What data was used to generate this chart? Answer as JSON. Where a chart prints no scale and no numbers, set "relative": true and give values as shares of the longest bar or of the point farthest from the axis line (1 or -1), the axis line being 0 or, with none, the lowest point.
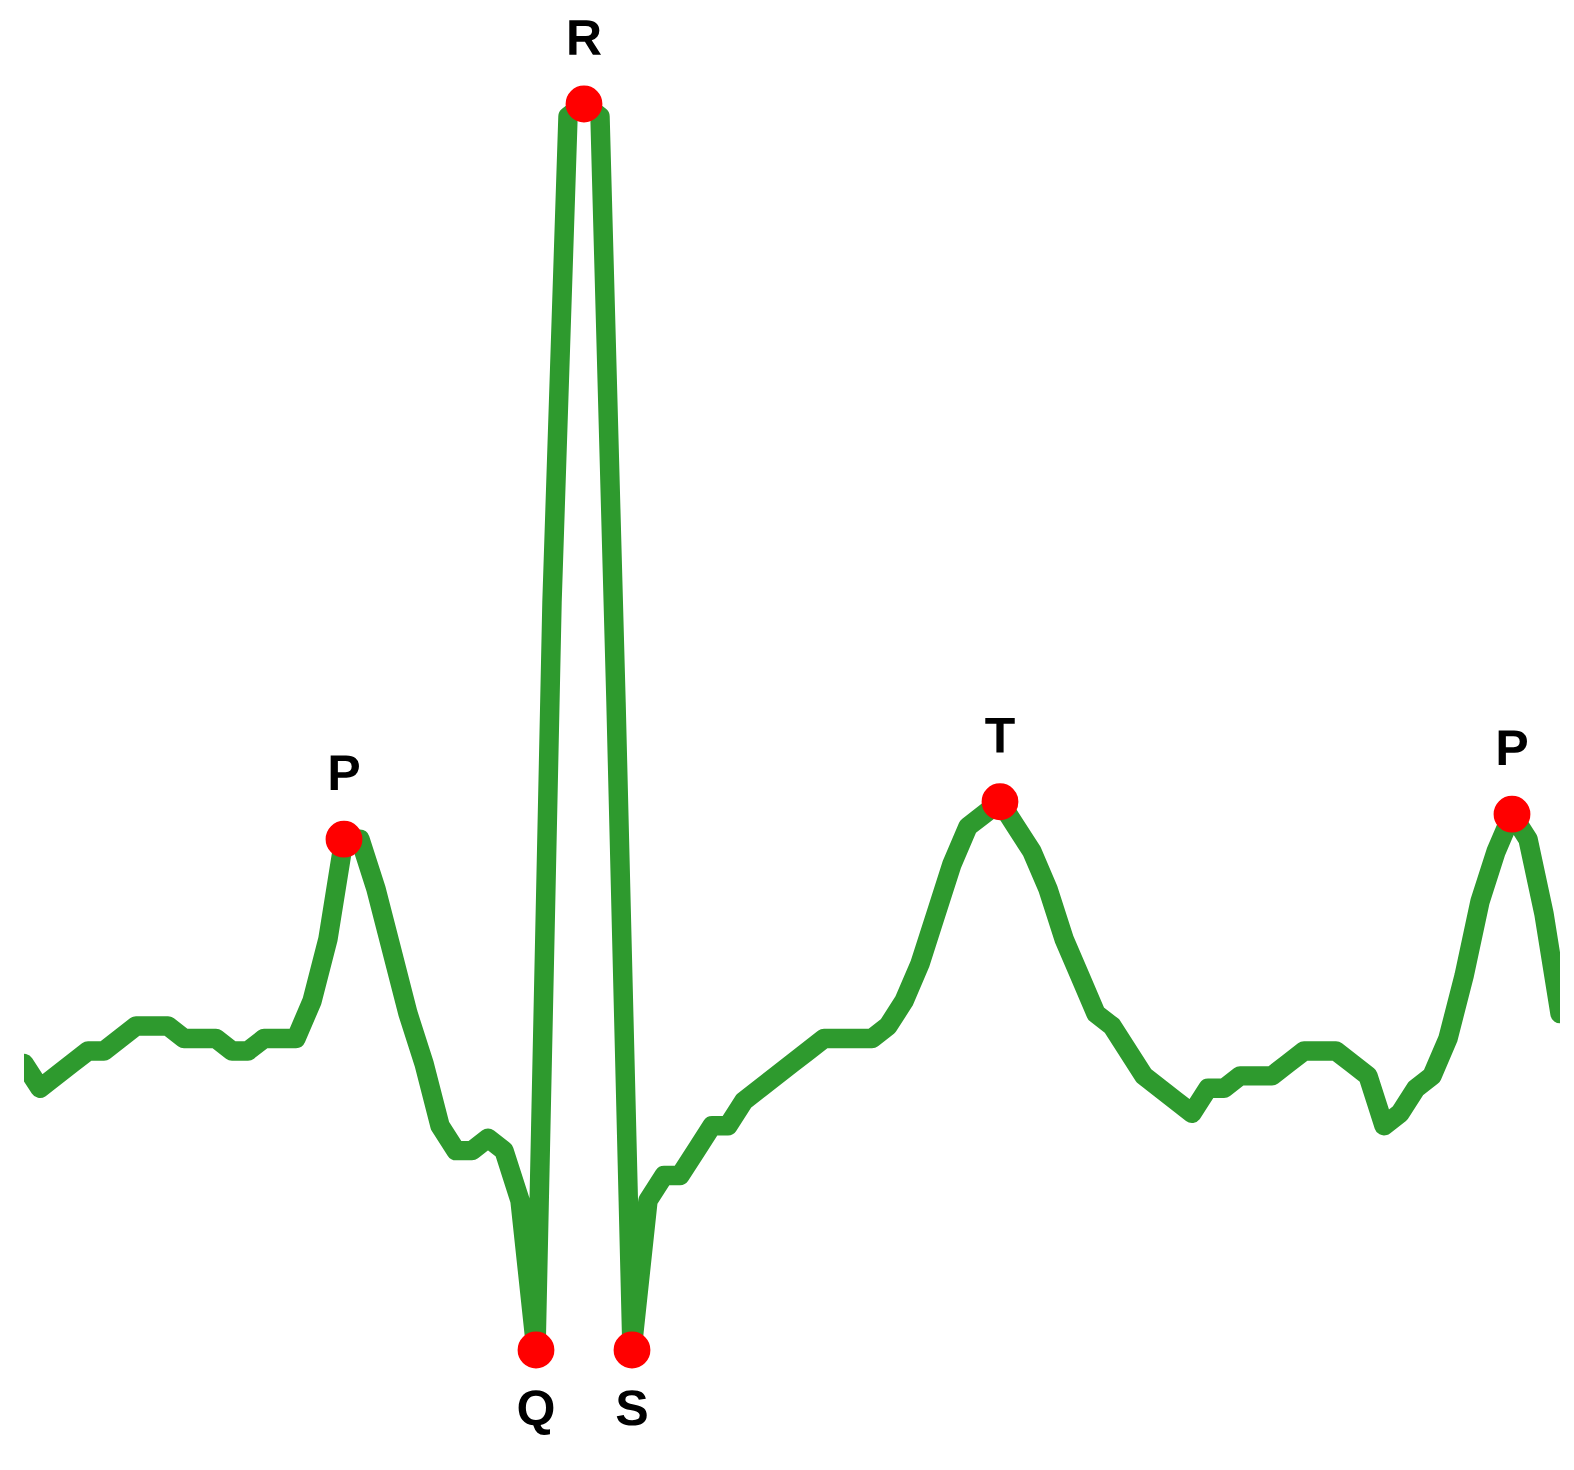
{
  "chart_data": {
    "type": "line",
    "relative": true,
    "categories": [
      null,
      null,
      null,
      null,
      null,
      null,
      null,
      null,
      null,
      null,
      null,
      null,
      null,
      null,
      null,
      null,
      null,
      null,
      null,
      null,
      null,
      null,
      null,
      null,
      null,
      null,
      null,
      null,
      null,
      null,
      null,
      null,
      null,
      null,
      null,
      null,
      null,
      null,
      null,
      null,
      null,
      null,
      null,
      null,
      null,
      null,
      null,
      null,
      null,
      null,
      null,
      null,
      null,
      null,
      null,
      null,
      null,
      null,
      null,
      null,
      null,
      null,
      null,
      null,
      null,
      null,
      null,
      null,
      null,
      null,
      null,
      null,
      null,
      null,
      null,
      null,
      null,
      null,
      null,
      null,
      null,
      null,
      null,
      null,
      null,
      null,
      null,
      null,
      null,
      null,
      null,
      null,
      null,
      null,
      null,
      null,
      null
    ],
    "series": [
      {
        "color": "#2e9a2e",
        "marker": "none",
        "values": [
          0.23,
          0.21,
          0.22,
          0.23,
          0.24,
          0.24,
          0.25,
          0.26,
          0.26,
          0.26,
          0.25,
          0.25,
          0.25,
          0.24,
          0.24,
          0.25,
          0.25,
          0.25,
          0.28,
          0.33,
          0.41,
          0.41,
          0.37,
          0.32,
          0.27,
          0.23,
          0.18,
          0.16,
          0.16,
          0.17,
          0.16,
          0.12,
          0,
          0.6,
          0.99,
          1,
          0.99,
          0.52,
          0,
          0.12,
          0.14,
          0.14,
          0.16,
          0.18,
          0.18,
          0.2,
          0.21,
          0.22,
          0.23,
          0.24,
          0.25,
          0.25,
          0.25,
          0.25,
          0.26,
          0.28,
          0.31,
          0.35,
          0.39,
          0.42,
          0.43,
          0.44,
          0.42,
          0.4,
          0.37,
          0.33,
          0.3,
          0.27,
          0.26,
          0.24,
          0.22,
          0.21,
          0.2,
          0.19,
          0.21,
          0.21,
          0.22,
          0.22,
          0.22,
          0.23,
          0.24,
          0.24,
          0.24,
          0.23,
          0.22,
          0.18,
          0.19,
          0.21,
          0.22,
          0.25,
          0.3,
          0.36,
          0.4,
          0.43,
          0.41,
          0.35,
          0.27
        ]
      }
    ],
    "annotations": [
      {
        "text": "P",
        "y": 0.41
      },
      {
        "text": "Q",
        "y": 0
      },
      {
        "text": "R",
        "y": 1
      },
      {
        "text": "S",
        "y": 0
      },
      {
        "text": "T",
        "y": 0.44
      },
      {
        "text": "P",
        "y": 0.43
      }
    ],
    "legend": false
  }
}
